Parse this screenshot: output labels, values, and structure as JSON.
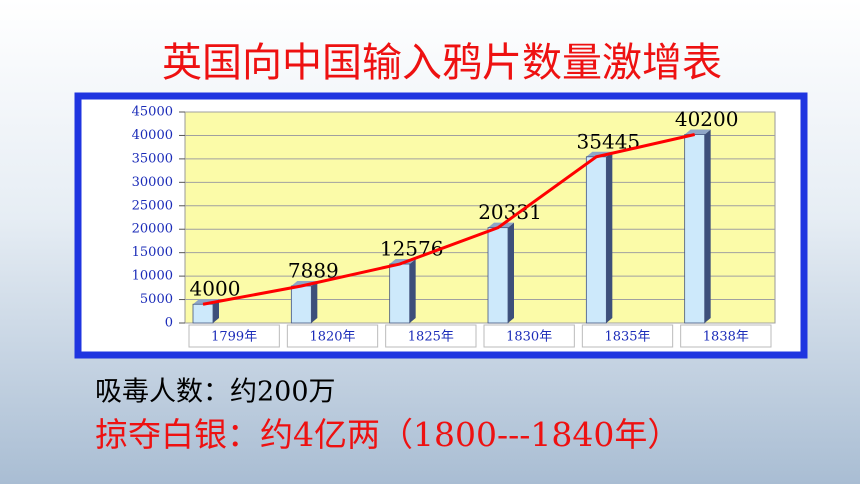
{
  "chart_data": {
    "type": "bar",
    "title": "英国向中国输入鸦片数量激增表",
    "categories": [
      "1799年",
      "1820年",
      "1825年",
      "1830年",
      "1835年",
      "1838年"
    ],
    "values": [
      4000,
      7889,
      12576,
      20331,
      35445,
      40200
    ],
    "color": "#cde9fb",
    "line_color": "#ff0000",
    "ylim": [
      0,
      45000
    ],
    "yticks": [
      0,
      5000,
      10000,
      15000,
      20000,
      25000,
      30000,
      35000,
      40000,
      45000
    ],
    "grid": true,
    "annotations": [
      "吸毒人数：约200万",
      "掠夺白银：约4亿两（1800---1840年）"
    ]
  }
}
